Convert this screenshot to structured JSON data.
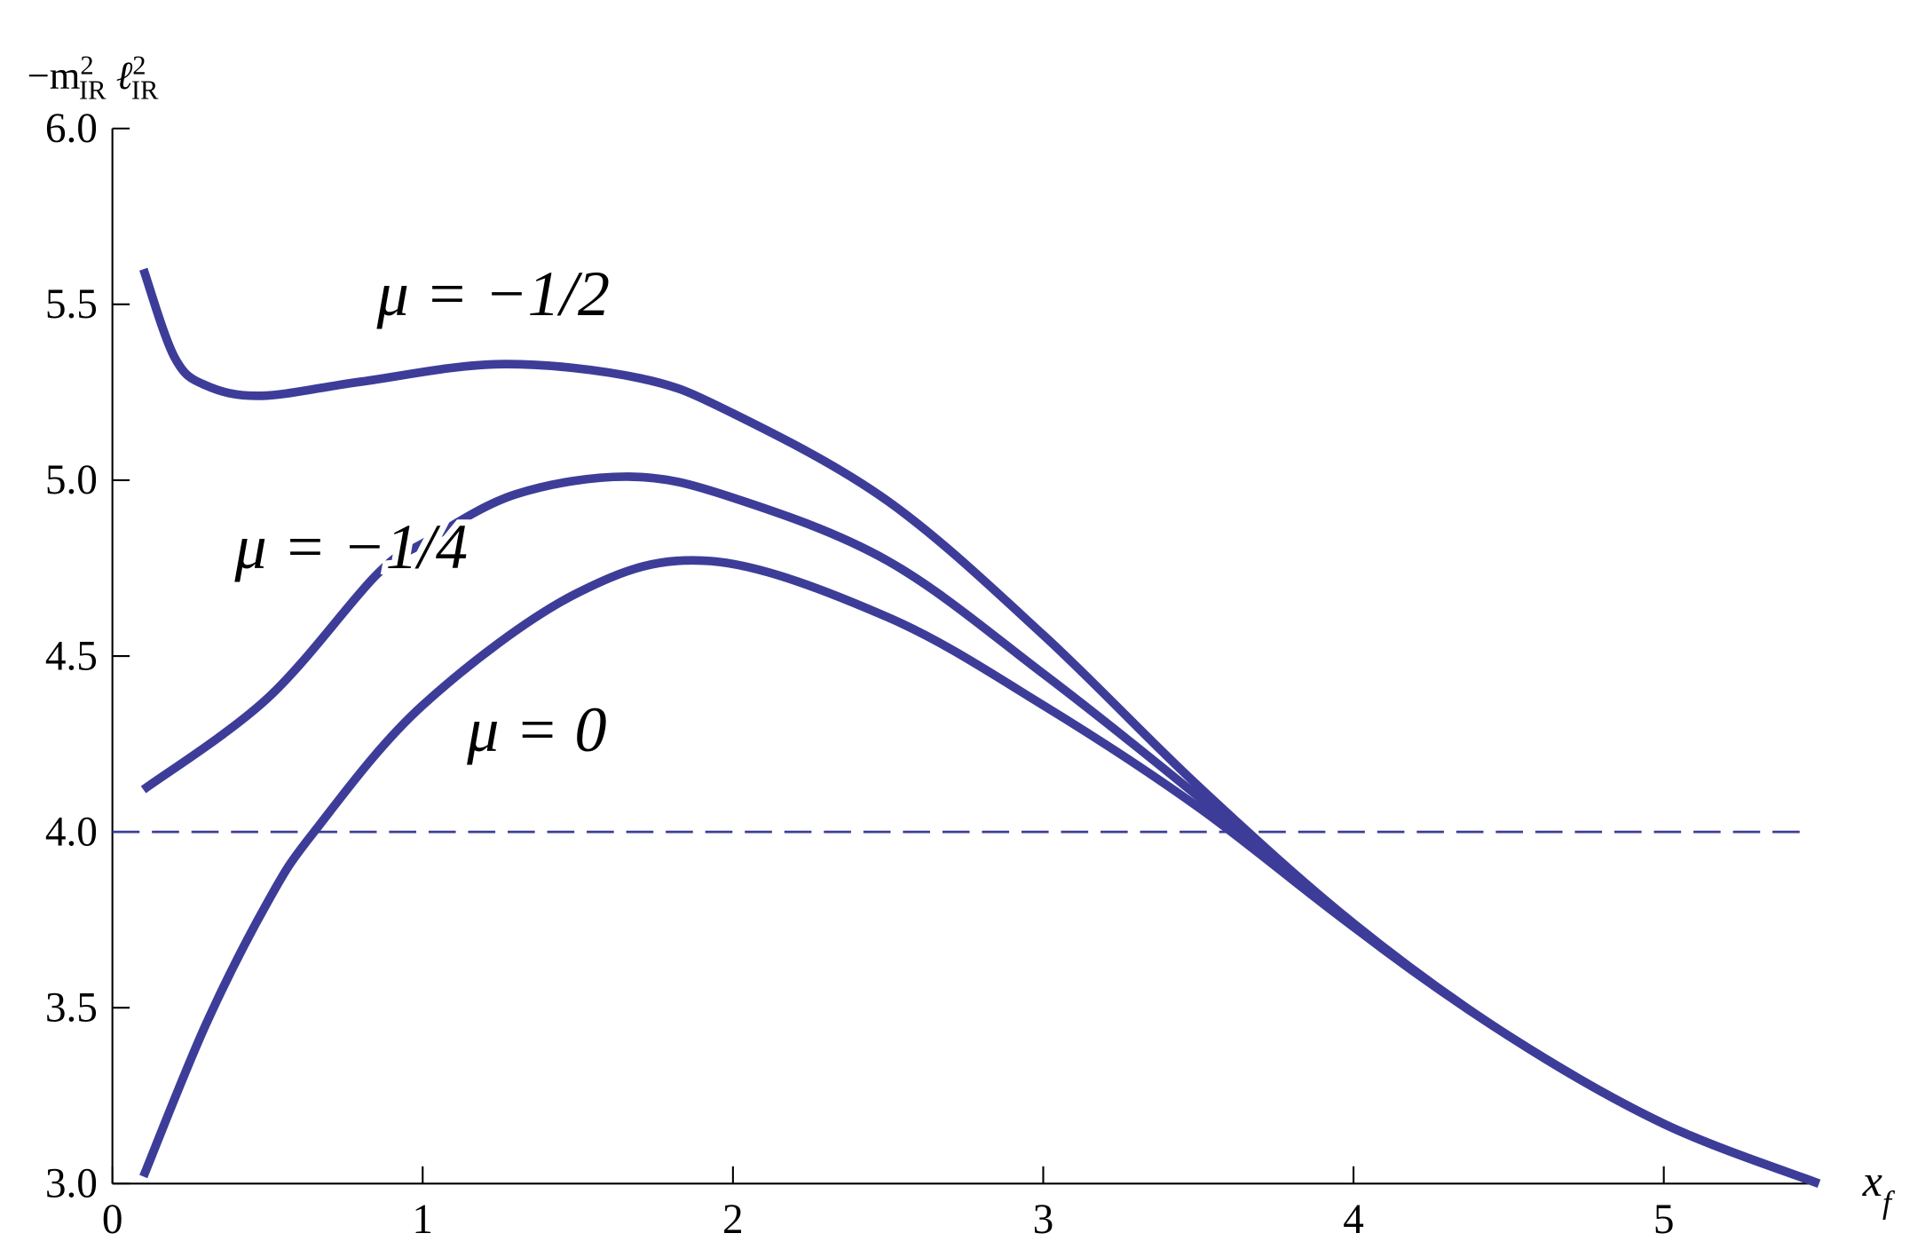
{
  "chart_data": {
    "type": "line",
    "ylabel": [
      "−m",
      "2",
      "IR",
      "ℓ",
      "2",
      "IR"
    ],
    "xlabel": [
      "x",
      "f"
    ],
    "xlim": [
      0,
      5.5
    ],
    "ylim": [
      3.0,
      6.0
    ],
    "xticks": [
      0,
      1,
      2,
      3,
      4,
      5
    ],
    "yticks": [
      {
        "value": 3,
        "label": "3.0"
      },
      {
        "value": 3.5,
        "label": "3.5"
      },
      {
        "value": 4,
        "label": "4.0"
      },
      {
        "value": 4.5,
        "label": "4.5"
      },
      {
        "value": 5,
        "label": "5.0"
      },
      {
        "value": 5.5,
        "label": "5.5"
      },
      {
        "value": 6,
        "label": "6.0"
      }
    ],
    "hline": 4,
    "series": [
      {
        "name": "μ = −1/2",
        "color": "#3d3d99",
        "x": [
          0.1,
          0.2,
          0.3,
          0.48,
          0.8,
          1.25,
          1.7,
          2.0,
          2.5,
          3.0,
          3.5,
          4.0,
          4.5,
          5.0,
          5.5
        ],
        "values": [
          5.6,
          5.35,
          5.27,
          5.24,
          5.28,
          5.33,
          5.29,
          5.19,
          4.94,
          4.56,
          4.13,
          3.74,
          3.42,
          3.17,
          3.0
        ]
      },
      {
        "name": "μ = −1/4",
        "color": "#3d3d99",
        "x": [
          0.1,
          0.5,
          0.85,
          1.0,
          1.3,
          1.67,
          2.0,
          2.5,
          3.0,
          3.5,
          4.0,
          4.5,
          5.0,
          5.5
        ],
        "values": [
          4.12,
          4.38,
          4.73,
          4.82,
          4.96,
          5.01,
          4.95,
          4.77,
          4.45,
          4.1,
          3.73,
          3.42,
          3.17,
          3.0
        ]
      },
      {
        "name": "μ = 0",
        "color": "#3d3d99",
        "x": [
          0.1,
          0.3,
          0.5,
          0.65,
          1.0,
          1.5,
          1.93,
          2.5,
          3.0,
          3.5,
          4.0,
          4.5,
          5.0,
          5.5
        ],
        "values": [
          3.02,
          3.45,
          3.8,
          4.0,
          4.36,
          4.68,
          4.77,
          4.61,
          4.36,
          4.07,
          3.73,
          3.42,
          3.17,
          3.0
        ]
      }
    ]
  }
}
